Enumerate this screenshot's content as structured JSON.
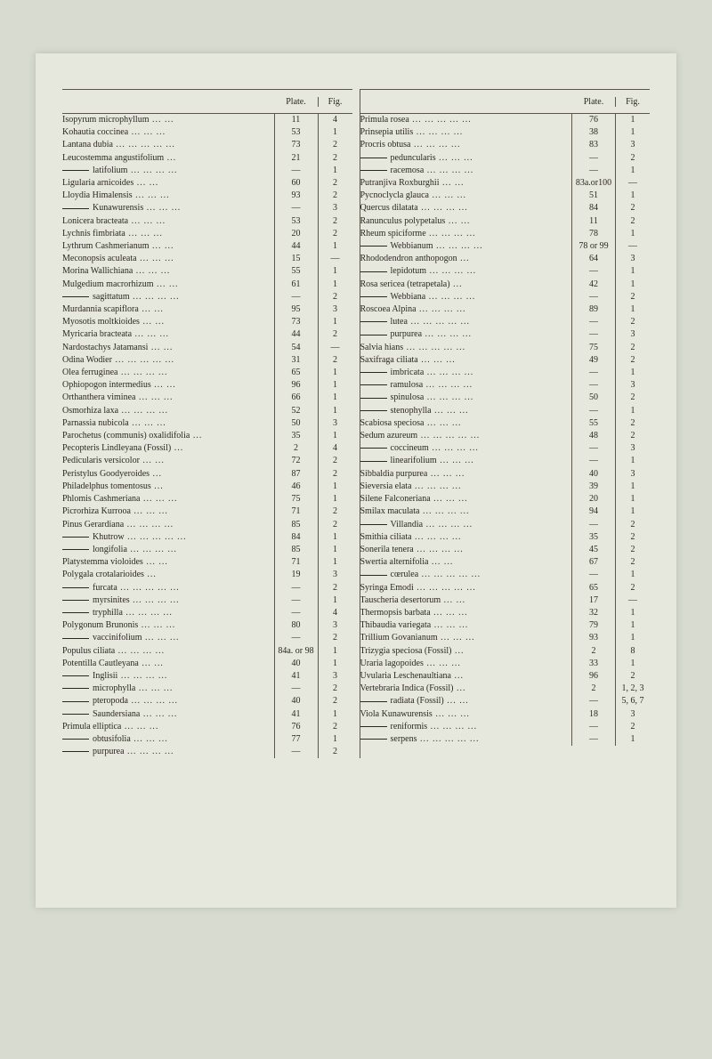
{
  "headers": {
    "plate": "Plate.",
    "fig": "Fig."
  },
  "left": [
    {
      "name": "Isopyrum microphyllum",
      "plate": "11",
      "fig": "4"
    },
    {
      "name": "Kohautia coccinea",
      "plate": "53",
      "fig": "1"
    },
    {
      "name": "Lantana dubia",
      "plate": "73",
      "fig": "2"
    },
    {
      "name": "Leucostemma angustifolium",
      "plate": "21",
      "fig": "2"
    },
    {
      "name": "latifolium",
      "indent": true,
      "plate": "—",
      "fig": "1"
    },
    {
      "name": "Ligularia arnicoides",
      "plate": "60",
      "fig": "2"
    },
    {
      "name": "Lloydia Himalensis",
      "plate": "93",
      "fig": "2"
    },
    {
      "name": "Kunawurensis",
      "indent": true,
      "plate": "—",
      "fig": "3"
    },
    {
      "name": "Lonicera bracteata",
      "plate": "53",
      "fig": "2"
    },
    {
      "name": "Lychnis fimbriata",
      "plate": "20",
      "fig": "2"
    },
    {
      "name": "Lythrum Cashmerianum",
      "plate": "44",
      "fig": "1"
    },
    {
      "name": "Meconopsis aculeata",
      "plate": "15",
      "fig": "—"
    },
    {
      "name": "Morina Wallichiana",
      "plate": "55",
      "fig": "1"
    },
    {
      "name": "Mulgedium macrorhizum",
      "plate": "61",
      "fig": "1"
    },
    {
      "name": "sagittatum",
      "indent": true,
      "plate": "—",
      "fig": "2"
    },
    {
      "name": "Murdannia scapiflora",
      "plate": "95",
      "fig": "3"
    },
    {
      "name": "Myosotis moltkioides",
      "plate": "73",
      "fig": "1"
    },
    {
      "name": "Myricaria bracteata",
      "plate": "44",
      "fig": "2"
    },
    {
      "name": "Nardostachys Jatamansi",
      "plate": "54",
      "fig": "—"
    },
    {
      "name": "Odina Wodier",
      "plate": "31",
      "fig": "2"
    },
    {
      "name": "Olea ferruginea",
      "plate": "65",
      "fig": "1"
    },
    {
      "name": "Ophiopogon intermedius",
      "plate": "96",
      "fig": "1"
    },
    {
      "name": "Orthanthera viminea",
      "plate": "66",
      "fig": "1"
    },
    {
      "name": "Osmorhiza laxa",
      "plate": "52",
      "fig": "1"
    },
    {
      "name": "Parnassia nubicola",
      "plate": "50",
      "fig": "3"
    },
    {
      "name": "Parochetus (communis) oxalidifolia",
      "plate": "35",
      "fig": "1"
    },
    {
      "name": "Pecopteris Lindleyana (Fossil)",
      "plate": "2",
      "fig": "4"
    },
    {
      "name": "Pedicularis versicolor",
      "plate": "72",
      "fig": "2"
    },
    {
      "name": "Peristylus Goodyeroides",
      "plate": "87",
      "fig": "2"
    },
    {
      "name": "Philadelphus tomentosus",
      "plate": "46",
      "fig": "1"
    },
    {
      "name": "Phlomis Cashmeriana",
      "plate": "75",
      "fig": "1"
    },
    {
      "name": "Picrorhiza Kurrooa",
      "plate": "71",
      "fig": "2"
    },
    {
      "name": "Pinus Gerardiana",
      "plate": "85",
      "fig": "2"
    },
    {
      "name": "Khutrow",
      "indent": true,
      "plate": "84",
      "fig": "1"
    },
    {
      "name": "longifolia",
      "indent": true,
      "plate": "85",
      "fig": "1"
    },
    {
      "name": "Platystemma violoides",
      "plate": "71",
      "fig": "1"
    },
    {
      "name": "Polygala crotalarioides",
      "plate": "19",
      "fig": "3"
    },
    {
      "name": "furcata",
      "indent": true,
      "plate": "—",
      "fig": "2"
    },
    {
      "name": "myrsinites",
      "indent": true,
      "plate": "—",
      "fig": "1"
    },
    {
      "name": "tryphilla",
      "indent": true,
      "plate": "—",
      "fig": "4"
    },
    {
      "name": "Polygonum Brunonis",
      "plate": "80",
      "fig": "3"
    },
    {
      "name": "vaccinifolium",
      "indent": true,
      "plate": "—",
      "fig": "2"
    },
    {
      "name": "Populus ciliata",
      "plate": "84a. or 98",
      "fig": "1"
    },
    {
      "name": "Potentilla Cautleyana",
      "plate": "40",
      "fig": "1"
    },
    {
      "name": "Inglisii",
      "indent": true,
      "plate": "41",
      "fig": "3"
    },
    {
      "name": "microphylla",
      "indent": true,
      "plate": "—",
      "fig": "2"
    },
    {
      "name": "pteropoda",
      "indent": true,
      "plate": "40",
      "fig": "2"
    },
    {
      "name": "Saundersiana",
      "indent": true,
      "plate": "41",
      "fig": "1"
    },
    {
      "name": "Primula elliptica",
      "plate": "76",
      "fig": "2"
    },
    {
      "name": "obtusifolia",
      "indent": true,
      "plate": "77",
      "fig": "1"
    },
    {
      "name": "purpurea",
      "indent": true,
      "plate": "—",
      "fig": "2"
    }
  ],
  "right": [
    {
      "name": "Primula rosea",
      "plate": "76",
      "fig": "1"
    },
    {
      "name": "Prinsepia utilis",
      "plate": "38",
      "fig": "1"
    },
    {
      "name": "Procris obtusa",
      "plate": "83",
      "fig": "3"
    },
    {
      "name": "peduncularis",
      "indent": true,
      "plate": "—",
      "fig": "2"
    },
    {
      "name": "racemosa",
      "indent": true,
      "plate": "—",
      "fig": "1"
    },
    {
      "name": "Putranjiva Roxburghii",
      "plate": "83a.or100",
      "fig": "—"
    },
    {
      "name": "Pycnoclycla glauca",
      "plate": "51",
      "fig": "1"
    },
    {
      "name": "Quercus dilatata",
      "plate": "84",
      "fig": "2"
    },
    {
      "name": "Ranunculus polypetalus",
      "plate": "11",
      "fig": "2"
    },
    {
      "name": "Rheum spiciforme",
      "plate": "78",
      "fig": "1"
    },
    {
      "name": "Webbianum",
      "indent": true,
      "plate": "78 or 99",
      "fig": "—"
    },
    {
      "name": "Rhododendron anthopogon",
      "plate": "64",
      "fig": "3"
    },
    {
      "name": "lepidotum",
      "indent": true,
      "plate": "—",
      "fig": "1"
    },
    {
      "name": "Rosa sericea (tetrapetala)",
      "plate": "42",
      "fig": "1"
    },
    {
      "name": "Webbiana",
      "indent": true,
      "plate": "—",
      "fig": "2"
    },
    {
      "name": "Roscoea Alpina",
      "plate": "89",
      "fig": "1"
    },
    {
      "name": "lutea",
      "indent": true,
      "plate": "—",
      "fig": "2"
    },
    {
      "name": "purpurea",
      "indent": true,
      "plate": "—",
      "fig": "3"
    },
    {
      "name": "Salvia hians",
      "plate": "75",
      "fig": "2"
    },
    {
      "name": "Saxifraga ciliata",
      "plate": "49",
      "fig": "2"
    },
    {
      "name": "imbricata",
      "indent": true,
      "plate": "—",
      "fig": "1"
    },
    {
      "name": "ramulosa",
      "indent": true,
      "plate": "—",
      "fig": "3"
    },
    {
      "name": "spinulosa",
      "indent": true,
      "plate": "50",
      "fig": "2"
    },
    {
      "name": "stenophylla",
      "indent": true,
      "plate": "—",
      "fig": "1"
    },
    {
      "name": "Scabiosa speciosa",
      "plate": "55",
      "fig": "2"
    },
    {
      "name": "Sedum azureum",
      "plate": "48",
      "fig": "2"
    },
    {
      "name": "coccineum",
      "indent": true,
      "plate": "—",
      "fig": "3"
    },
    {
      "name": "linearifolium",
      "indent": true,
      "plate": "—",
      "fig": "1"
    },
    {
      "name": "Sibbaldia purpurea",
      "plate": "40",
      "fig": "3"
    },
    {
      "name": "Sieversia elata",
      "plate": "39",
      "fig": "1"
    },
    {
      "name": "Silene Falconeriana",
      "plate": "20",
      "fig": "1"
    },
    {
      "name": "Smilax maculata",
      "plate": "94",
      "fig": "1"
    },
    {
      "name": "Villandia",
      "indent": true,
      "plate": "—",
      "fig": "2"
    },
    {
      "name": "Smithia ciliata",
      "plate": "35",
      "fig": "2"
    },
    {
      "name": "Sonerila tenera",
      "plate": "45",
      "fig": "2"
    },
    {
      "name": "Swertia alternifolia",
      "plate": "67",
      "fig": "2"
    },
    {
      "name": "cœrulea",
      "indent": true,
      "plate": "—",
      "fig": "1"
    },
    {
      "name": "Syringa Emodi",
      "plate": "65",
      "fig": "2"
    },
    {
      "name": "Tauscheria desertorum",
      "plate": "17",
      "fig": "—"
    },
    {
      "name": "Thermopsis barbata",
      "plate": "32",
      "fig": "1"
    },
    {
      "name": "Thibaudia variegata",
      "plate": "79",
      "fig": "1"
    },
    {
      "name": "Trillium Govanianum",
      "plate": "93",
      "fig": "1"
    },
    {
      "name": "Trizygia speciosa (Fossil)",
      "plate": "2",
      "fig": "8"
    },
    {
      "name": "Uraria lagopoides",
      "plate": "33",
      "fig": "1"
    },
    {
      "name": "Uvularia Leschenaultiana",
      "plate": "96",
      "fig": "2"
    },
    {
      "name": "Vertebraria Indica (Fossil)",
      "plate": "2",
      "fig": "1, 2, 3"
    },
    {
      "name": "radiata (Fossil)",
      "indent": true,
      "plate": "—",
      "fig": "5, 6, 7"
    },
    {
      "name": "Viola Kunawurensis",
      "plate": "18",
      "fig": "3"
    },
    {
      "name": "reniformis",
      "indent": true,
      "plate": "—",
      "fig": "2"
    },
    {
      "name": "serpens",
      "indent": true,
      "plate": "—",
      "fig": "1"
    }
  ]
}
